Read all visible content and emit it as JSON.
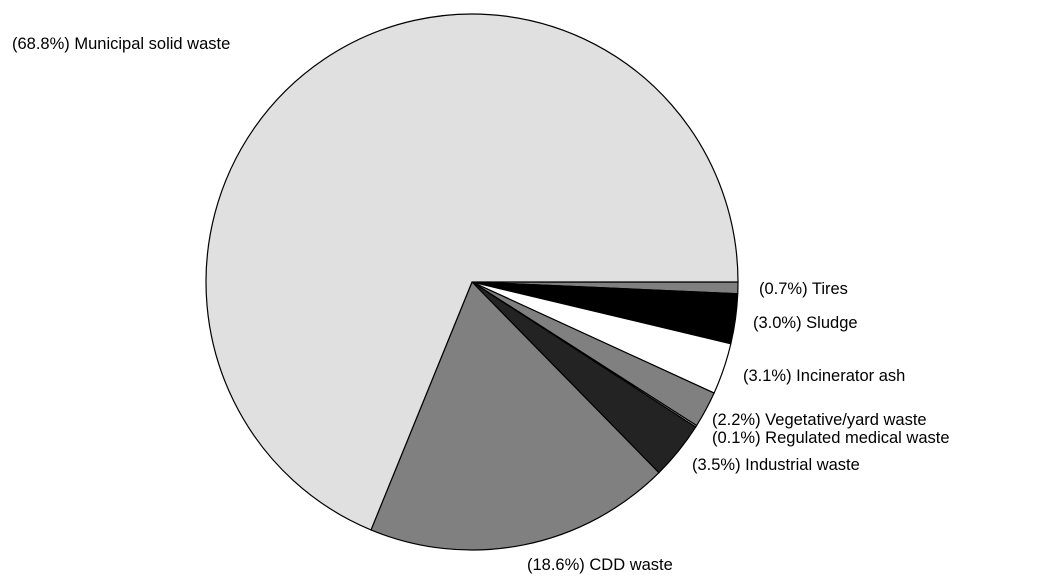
{
  "chart_data": {
    "type": "pie",
    "slices": [
      {
        "label": "(0.7%) Tires",
        "value": 0.7,
        "color": "#808080"
      },
      {
        "label": "(3.0%) Sludge",
        "value": 3.0,
        "color": "#000000"
      },
      {
        "label": "(3.1%) Incinerator ash",
        "value": 3.1,
        "color": "#ffffff"
      },
      {
        "label": "(2.2%) Vegetative/yard waste",
        "value": 2.2,
        "color": "#808080"
      },
      {
        "label": "(0.1%) Regulated medical waste",
        "value": 0.1,
        "color": "#ffffff"
      },
      {
        "label": "(3.5%) Industrial waste",
        "value": 3.5,
        "color": "#232323"
      },
      {
        "label": "(18.6%) CDD waste",
        "value": 18.6,
        "color": "#808080"
      },
      {
        "label": "(68.8%) Municipal solid waste",
        "value": 68.8,
        "color": "#e0e0e0"
      }
    ],
    "start_angle": "3 o'clock",
    "direction": "clockwise",
    "legend": "none"
  }
}
